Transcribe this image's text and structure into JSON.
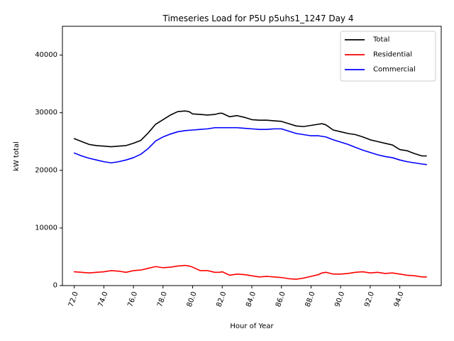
{
  "chart_data": {
    "type": "line",
    "title": "Timeseries Load for P5U p5uhs1_1247  Day 4",
    "xlabel": "Hour of Year",
    "ylabel": "kW total",
    "xlim": [
      71.2,
      96.8
    ],
    "ylim": [
      0,
      45000
    ],
    "xticks": [
      72,
      74,
      76,
      78,
      80,
      82,
      84,
      86,
      88,
      90,
      92,
      94
    ],
    "xtick_labels": [
      "72.0",
      "74.0",
      "76.0",
      "78.0",
      "80.0",
      "82.0",
      "84.0",
      "86.0",
      "88.0",
      "90.0",
      "92.0",
      "94.0"
    ],
    "yticks": [
      0,
      10000,
      20000,
      30000,
      40000
    ],
    "ytick_labels": [
      "0",
      "10000",
      "20000",
      "30000",
      "40000"
    ],
    "legend_position": "top-right",
    "grid": false,
    "series": [
      {
        "name": "Total",
        "color": "#000000",
        "x": [
          72.0,
          72.5,
          73.0,
          73.5,
          74.0,
          74.5,
          75.0,
          75.5,
          76.0,
          76.5,
          77.0,
          77.5,
          78.0,
          78.5,
          79.0,
          79.5,
          79.75,
          80.0,
          80.5,
          81.0,
          81.5,
          81.8,
          82.0,
          82.5,
          83.0,
          83.5,
          84.0,
          84.5,
          85.0,
          85.5,
          86.0,
          86.5,
          87.0,
          87.5,
          88.0,
          88.5,
          88.75,
          89.0,
          89.5,
          90.0,
          90.5,
          91.0,
          91.5,
          92.0,
          92.5,
          93.0,
          93.5,
          94.0,
          94.5,
          95.0,
          95.5,
          95.8
        ],
        "values": [
          25500,
          25000,
          24500,
          24300,
          24200,
          24100,
          24200,
          24300,
          24700,
          25200,
          26500,
          28000,
          28800,
          29600,
          30200,
          30300,
          30200,
          29800,
          29700,
          29600,
          29700,
          29900,
          29900,
          29300,
          29500,
          29200,
          28800,
          28700,
          28700,
          28600,
          28500,
          28100,
          27700,
          27600,
          27800,
          28000,
          28100,
          27900,
          27000,
          26700,
          26400,
          26200,
          25800,
          25300,
          25000,
          24700,
          24400,
          23600,
          23400,
          22900,
          22500,
          22500
        ]
      },
      {
        "name": "Residential",
        "color": "#ff0000",
        "x": [
          72.0,
          72.5,
          73.0,
          73.5,
          74.0,
          74.5,
          75.0,
          75.5,
          76.0,
          76.5,
          77.0,
          77.5,
          78.0,
          78.5,
          79.0,
          79.5,
          79.75,
          80.0,
          80.5,
          81.0,
          81.5,
          81.8,
          82.0,
          82.5,
          83.0,
          83.5,
          84.0,
          84.5,
          85.0,
          85.5,
          86.0,
          86.5,
          87.0,
          87.5,
          88.0,
          88.5,
          88.75,
          89.0,
          89.5,
          90.0,
          90.5,
          91.0,
          91.5,
          92.0,
          92.5,
          93.0,
          93.5,
          94.0,
          94.5,
          95.0,
          95.5,
          95.8
        ],
        "values": [
          2400,
          2300,
          2200,
          2300,
          2400,
          2600,
          2500,
          2300,
          2600,
          2700,
          3000,
          3300,
          3100,
          3200,
          3400,
          3500,
          3400,
          3200,
          2600,
          2600,
          2300,
          2300,
          2400,
          1800,
          2000,
          1900,
          1700,
          1500,
          1600,
          1500,
          1400,
          1200,
          1100,
          1300,
          1600,
          1900,
          2200,
          2300,
          2000,
          2000,
          2100,
          2300,
          2400,
          2200,
          2300,
          2100,
          2200,
          2000,
          1800,
          1700,
          1500,
          1500
        ]
      },
      {
        "name": "Commercial",
        "color": "#0000ff",
        "x": [
          72.0,
          72.5,
          73.0,
          73.5,
          74.0,
          74.5,
          75.0,
          75.5,
          76.0,
          76.5,
          77.0,
          77.5,
          78.0,
          78.5,
          79.0,
          79.5,
          80.0,
          80.5,
          81.0,
          81.5,
          82.0,
          82.5,
          83.0,
          83.5,
          84.0,
          84.5,
          85.0,
          85.5,
          86.0,
          86.5,
          87.0,
          87.5,
          88.0,
          88.5,
          89.0,
          89.5,
          90.0,
          90.5,
          91.0,
          91.5,
          92.0,
          92.5,
          93.0,
          93.5,
          94.0,
          94.5,
          95.0,
          95.5,
          95.8
        ],
        "values": [
          23000,
          22500,
          22100,
          21800,
          21500,
          21300,
          21500,
          21800,
          22200,
          22800,
          23800,
          25100,
          25800,
          26300,
          26700,
          26900,
          27000,
          27100,
          27200,
          27400,
          27400,
          27400,
          27400,
          27300,
          27200,
          27100,
          27100,
          27200,
          27200,
          26800,
          26400,
          26200,
          26000,
          26000,
          25800,
          25300,
          24900,
          24500,
          24000,
          23500,
          23100,
          22700,
          22400,
          22200,
          21800,
          21500,
          21300,
          21100,
          21000
        ]
      }
    ]
  }
}
